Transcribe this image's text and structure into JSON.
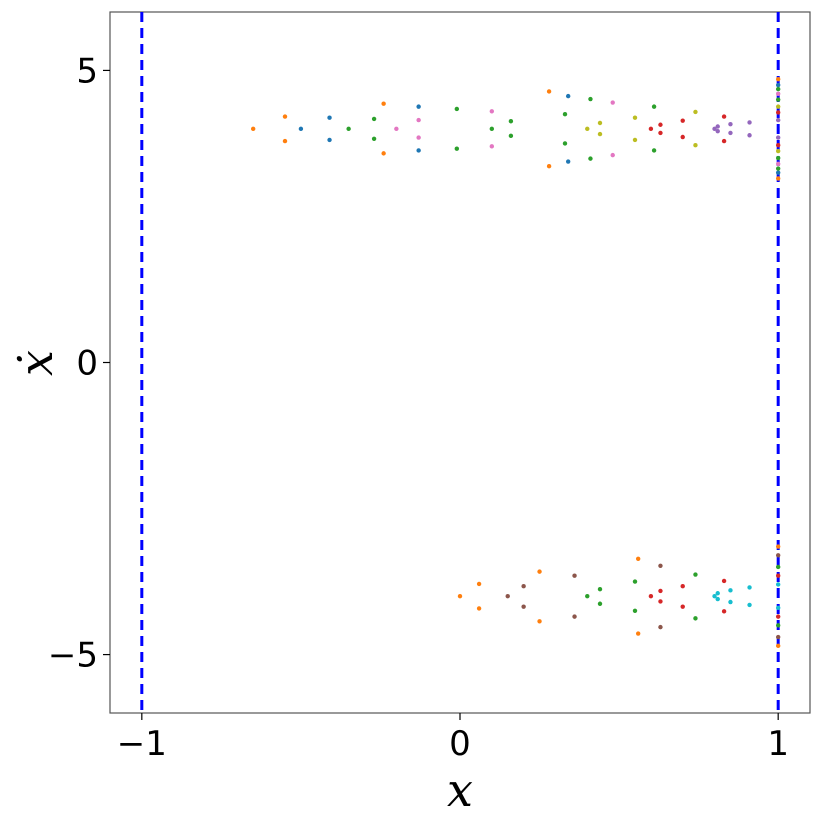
{
  "chart_data": {
    "type": "scatter",
    "xlabel": "x",
    "ylabel": "ẋ",
    "xlim": [
      -1.1,
      1.1
    ],
    "ylim": [
      -6,
      6
    ],
    "xticks": [
      {
        "value": -1,
        "label": "−1"
      },
      0,
      1
    ],
    "yticks": [
      {
        "value": -5,
        "label": "−5"
      },
      0,
      5
    ],
    "vlines": [
      -1,
      1
    ],
    "vline_color": "#0000ff",
    "vline_style": "dashed",
    "series": [
      {
        "color": "#ff7f0e",
        "x": [
          1,
          0.28,
          -0.24,
          -0.55,
          -0.65,
          -0.55,
          -0.24,
          0.28,
          1
        ],
        "y": [
          3.15,
          3.36,
          3.58,
          3.79,
          4.0,
          4.21,
          4.43,
          4.64,
          4.85
        ]
      },
      {
        "color": "#1f77b4",
        "x": [
          1,
          0.34,
          -0.13,
          -0.41,
          -0.5,
          -0.41,
          -0.13,
          0.34,
          1
        ],
        "y": [
          3.25,
          3.44,
          3.63,
          3.81,
          4,
          4.19,
          4.38,
          4.56,
          4.75
        ]
      },
      {
        "color": "#2ca02c",
        "x": [
          1,
          0.41,
          -0.01,
          -0.27,
          -0.35,
          -0.27,
          -0.01,
          0.41,
          1
        ],
        "y": [
          3.32,
          3.49,
          3.66,
          3.83,
          4,
          4.17,
          4.34,
          4.51,
          4.68
        ]
      },
      {
        "color": "#e377c2",
        "x": [
          1,
          0.48,
          0.1,
          -0.13,
          -0.2,
          -0.13,
          0.1,
          0.48,
          1
        ],
        "y": [
          3.4,
          3.55,
          3.7,
          3.85,
          4,
          4.15,
          4.3,
          4.45,
          4.6
        ]
      },
      {
        "color": "#2ca02c",
        "x": [
          1,
          0.61,
          0.33,
          0.16,
          0.1,
          0.16,
          0.33,
          0.61,
          1
        ],
        "y": [
          3.5,
          3.63,
          3.75,
          3.88,
          4,
          4.13,
          4.25,
          4.38,
          4.5
        ]
      },
      {
        "color": "#bcbd22",
        "x": [
          1,
          0.74,
          0.55,
          0.44,
          0.4,
          0.44,
          0.55,
          0.74,
          1
        ],
        "y": [
          3.62,
          3.72,
          3.81,
          3.91,
          4,
          4.1,
          4.19,
          4.29,
          4.38
        ]
      },
      {
        "color": "#d62728",
        "x": [
          1,
          0.83,
          0.7,
          0.63,
          0.6,
          0.63,
          0.7,
          0.83,
          1
        ],
        "y": [
          3.72,
          3.79,
          3.86,
          3.93,
          4,
          4.07,
          4.14,
          4.21,
          4.28
        ]
      },
      {
        "color": "#9467bd",
        "x": [
          1,
          0.91,
          0.85,
          0.81,
          0.8,
          0.81,
          0.85,
          0.91,
          1
        ],
        "y": [
          3.85,
          3.89,
          3.93,
          3.96,
          4,
          4.04,
          4.08,
          4.11,
          4.15
        ]
      },
      {
        "color": "#ff7f0e",
        "x": [
          1,
          0.56,
          0.25,
          0.06,
          0,
          0.06,
          0.25,
          0.56,
          1
        ],
        "y": [
          -4.85,
          -4.64,
          -4.43,
          -4.21,
          -4,
          -3.79,
          -3.58,
          -3.36,
          -3.15
        ]
      },
      {
        "color": "#8c564b",
        "x": [
          1,
          0.63,
          0.36,
          0.2,
          0.15,
          0.2,
          0.36,
          0.63,
          1
        ],
        "y": [
          -4.7,
          -4.53,
          -4.35,
          -4.18,
          -4,
          -3.83,
          -3.65,
          -3.48,
          -3.3
        ]
      },
      {
        "color": "#2ca02c",
        "x": [
          1,
          0.74,
          0.55,
          0.44,
          0.4,
          0.44,
          0.55,
          0.74,
          1
        ],
        "y": [
          -4.5,
          -4.38,
          -4.25,
          -4.13,
          -4,
          -3.88,
          -3.75,
          -3.63,
          -3.5
        ]
      },
      {
        "color": "#d62728",
        "x": [
          1,
          0.83,
          0.7,
          0.63,
          0.6,
          0.63,
          0.7,
          0.83,
          1
        ],
        "y": [
          -4.35,
          -4.26,
          -4.18,
          -4.09,
          -4,
          -3.91,
          -3.83,
          -3.74,
          -3.65
        ]
      },
      {
        "color": "#17becf",
        "x": [
          1,
          0.91,
          0.85,
          0.81,
          0.8,
          0.81,
          0.85,
          0.91,
          1
        ],
        "y": [
          -4.2,
          -4.15,
          -4.1,
          -4.05,
          -4,
          -3.95,
          -3.9,
          -3.85,
          -3.8
        ]
      }
    ]
  }
}
